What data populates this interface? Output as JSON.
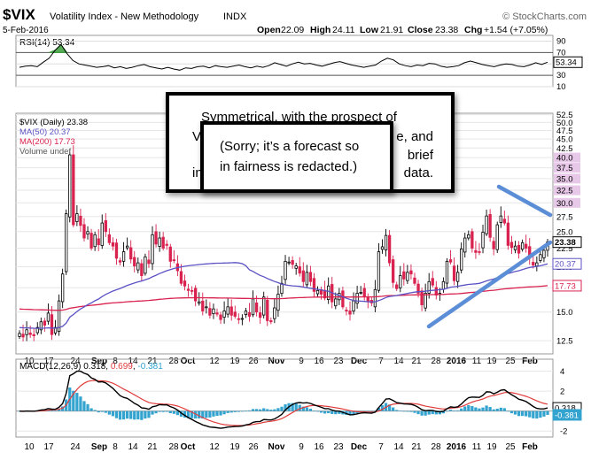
{
  "header": {
    "symbol": "$VIX",
    "name": "Volatility Index - New Methodology",
    "exchange": "INDX",
    "date": "5-Feb-2016",
    "brand": "© StockCharts.com",
    "ohlc": {
      "open_label": "Open",
      "open": "22.09",
      "high_label": "High",
      "high": "24.11",
      "low_label": "Low",
      "low": "21.91",
      "close_label": "Close",
      "close": "23.38",
      "chg_label": "Chg",
      "chg": "+1.54 (+7.05%)"
    }
  },
  "notes": {
    "back_line1": "Symmetrical, with the prospect of",
    "back_line2_left": "V",
    "back_line2_right": "e, and",
    "back_line3_left": "in",
    "back_line3_right": "data.",
    "back_line2_tail": "brief",
    "front_line1": "(Sorry; it’s a forecast so",
    "front_line2": "in fairness is redacted.)"
  },
  "colors": {
    "up": "#ffffff",
    "down": "#d9224f",
    "ma50": "#5b52c4",
    "ma200": "#d9224f",
    "rsi": "#000000",
    "macd": "#000000",
    "signal": "#e03c3c",
    "hist": "#33a3cf",
    "trend": "#5b8ed6",
    "green": "#3a9e3a",
    "rsi_band": "#e8c8e8"
  },
  "chart_data": [
    {
      "type": "line",
      "label": "RSI(14)",
      "value": "53.34",
      "ylim": [
        10,
        100
      ],
      "ticks": [
        "90",
        "70",
        "50",
        "30",
        "10"
      ],
      "values": [
        44,
        46,
        47,
        45,
        53,
        60,
        74,
        84,
        68,
        56,
        50,
        48,
        46,
        44,
        45,
        47,
        43,
        45,
        42,
        44,
        47,
        49,
        45,
        43,
        41,
        44,
        41,
        39,
        43,
        42,
        45,
        46,
        43,
        47,
        45,
        44,
        46,
        48,
        45,
        43,
        46,
        44,
        47,
        52,
        49,
        46,
        50,
        53,
        50,
        51,
        48,
        46,
        49,
        52,
        54,
        51,
        48,
        46,
        44,
        46,
        48,
        55,
        60,
        57,
        50,
        47,
        45,
        48,
        47,
        51,
        50,
        46,
        44,
        45,
        47,
        52,
        55,
        52,
        49,
        47,
        45,
        48,
        50,
        49,
        46,
        45,
        48,
        52,
        49,
        53
      ]
    },
    {
      "type": "candlestick",
      "label": "$VIX (Daily)",
      "value": "23.38",
      "legend": [
        {
          "name": "$VIX (Daily) 23.38"
        },
        {
          "name": "MA(50) 20.37"
        },
        {
          "name": "MA(200) 17.73"
        },
        {
          "name": "Volume undef"
        }
      ],
      "ylim": [
        11.5,
        53
      ],
      "y_scale": "log",
      "yticks": [
        "52.5",
        "50.0",
        "47.5",
        "45.0",
        "42.5",
        "40.0",
        "37.5",
        "35.0",
        "32.5",
        "30.0",
        "27.5",
        "25.0",
        "22.5",
        "20.0",
        "17.5",
        "15.0",
        "12.5"
      ],
      "highlighted_ticks": [
        "40.0",
        "37.5",
        "35.0",
        "32.5",
        "30.0"
      ],
      "last_tags": [
        {
          "name": "close",
          "value": "23.38"
        },
        {
          "name": "ma50",
          "value": "20.37"
        },
        {
          "name": "ma200",
          "value": "17.73"
        }
      ],
      "x_labels": [
        "10",
        "17",
        "24",
        "Sep",
        "8",
        "14",
        "21",
        "28",
        "Oct",
        "12",
        "19",
        "26",
        "Nov",
        "9",
        "16",
        "23",
        "Dec",
        "7",
        "14",
        "21",
        "28",
        "2016",
        "11",
        "19",
        "25",
        "Feb"
      ],
      "bold_labels": [
        "Sep",
        "Oct",
        "Nov",
        "Dec",
        "2016",
        "Feb"
      ],
      "close": [
        13.1,
        12.8,
        13.4,
        13.0,
        12.9,
        13.6,
        14.1,
        13.8,
        14.9,
        13.0,
        13.6,
        16.1,
        19.1,
        28.0,
        40.7,
        26.1,
        28.0,
        26.0,
        24.0,
        25.0,
        22.5,
        24.5,
        23.0,
        26.4,
        25.0,
        23.3,
        22.8,
        21.1,
        20.6,
        22.0,
        22.8,
        21.0,
        20.1,
        20.5,
        18.9,
        21.3,
        20.4,
        24.5,
        23.1,
        24.0,
        22.5,
        22.9,
        20.7,
        20.9,
        19.5,
        18.0,
        17.7,
        17.2,
        17.1,
        16.1,
        16.0,
        15.1,
        15.5,
        14.7,
        15.3,
        14.8,
        14.3,
        15.1,
        15.5,
        14.7,
        14.6,
        14.3,
        14.4,
        15.1,
        14.6,
        16.3,
        15.0,
        14.5,
        16.5,
        14.2,
        14.1,
        15.4,
        16.8,
        18.0,
        20.7,
        20.6,
        20.3,
        20.1,
        19.2,
        18.2,
        19.3,
        18.2,
        17.1,
        17.2,
        16.8,
        16.4,
        17.7,
        16.0,
        16.3,
        16.9,
        15.5,
        15.1,
        14.8,
        16.1,
        16.9,
        17.0,
        16.6,
        16.0,
        15.9,
        17.3,
        22.0,
        22.7,
        24.4,
        20.5,
        18.1,
        17.4,
        18.9,
        18.5,
        19.3,
        19.1,
        18.0,
        16.9,
        15.7,
        16.9,
        18.2,
        17.8,
        16.7,
        16.9,
        18.2,
        20.7,
        20.6,
        18.3,
        19.3,
        22.4,
        24.0,
        24.5,
        22.5,
        21.9,
        22.0,
        24.9,
        27.6,
        24.1,
        22.4,
        26.1,
        27.6,
        26.4,
        22.9,
        22.6,
        22.8,
        21.8,
        23.3,
        22.5,
        21.1,
        20.2,
        20.5,
        21.6,
        22.2,
        23.4
      ]
    },
    {
      "type": "line",
      "label": "MACD(12,26,9)",
      "values_text": {
        "macd": "0.318",
        "signal": "0.699",
        "hist": "-0.381"
      },
      "ylim": [
        -2.6,
        5.2
      ],
      "ticks": [
        "4",
        "2",
        "0",
        "-2"
      ],
      "last_tags": [
        {
          "name": "macd",
          "value": "0.318"
        },
        {
          "name": "hist",
          "value": "-0.381"
        }
      ]
    }
  ]
}
